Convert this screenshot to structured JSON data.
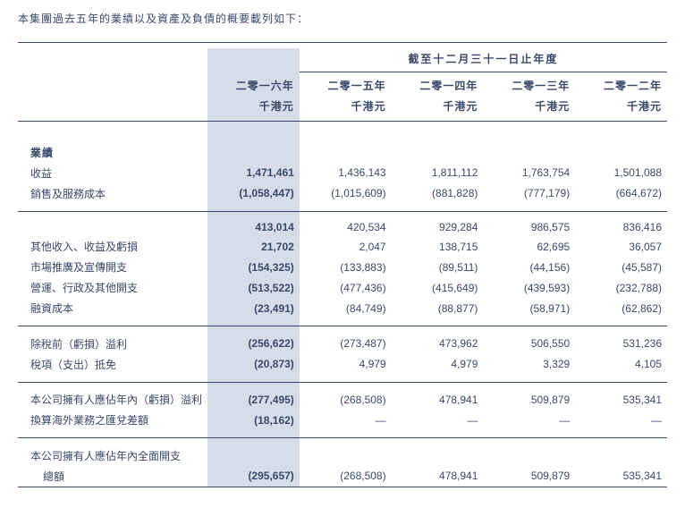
{
  "intro": "本集團過去五年的業績以及資產及負債的概要載列如下：",
  "header_span": "截至十二月三十一日止年度",
  "years": [
    "二零一六年",
    "二零一五年",
    "二零一四年",
    "二零一三年",
    "二零一二年"
  ],
  "unit": "千港元",
  "section1_title": "業績",
  "rows": [
    {
      "label": "收益",
      "v": [
        "1,471,461",
        "1,436,143",
        "1,811,112",
        "1,763,754",
        "1,501,088"
      ]
    },
    {
      "label": "銷售及服務成本",
      "v": [
        "(1,058,447)",
        "(1,015,609)",
        "(881,828)",
        "(777,179)",
        "(664,672)"
      ]
    }
  ],
  "rows2": [
    {
      "label": "",
      "v": [
        "413,014",
        "420,534",
        "929,284",
        "986,575",
        "836,416"
      ]
    },
    {
      "label": "其他收入、收益及虧損",
      "v": [
        "21,702",
        "2,047",
        "138,715",
        "62,695",
        "36,057"
      ]
    },
    {
      "label": "市場推廣及宣傳開支",
      "v": [
        "(154,325)",
        "(133,883)",
        "(89,511)",
        "(44,156)",
        "(45,587)"
      ]
    },
    {
      "label": "營運、行政及其他開支",
      "v": [
        "(513,522)",
        "(477,436)",
        "(415,649)",
        "(439,593)",
        "(232,788)"
      ]
    },
    {
      "label": "融資成本",
      "v": [
        "(23,491)",
        "(84,749)",
        "(88,877)",
        "(58,971)",
        "(62,862)"
      ]
    }
  ],
  "rows3": [
    {
      "label": "除稅前（虧損）溢利",
      "v": [
        "(256,622)",
        "(273,487)",
        "473,962",
        "506,550",
        "531,236"
      ]
    },
    {
      "label": "稅項（支出）抵免",
      "v": [
        "(20,873)",
        "4,979",
        "4,979",
        "3,329",
        "4,105"
      ]
    }
  ],
  "rows4": [
    {
      "label": "本公司擁有人應佔年內（虧損）溢利",
      "v": [
        "(277,495)",
        "(268,508)",
        "478,941",
        "509,879",
        "535,341"
      ]
    },
    {
      "label": "換算海外業務之匯兌差額",
      "v": [
        "(18,162)",
        "—",
        "—",
        "—",
        "—"
      ]
    }
  ],
  "rows5": [
    {
      "label": "本公司擁有人應佔年內全面開支",
      "label2": "總額",
      "v": [
        "(295,657)",
        "(268,508)",
        "478,941",
        "509,879",
        "535,341"
      ]
    }
  ]
}
